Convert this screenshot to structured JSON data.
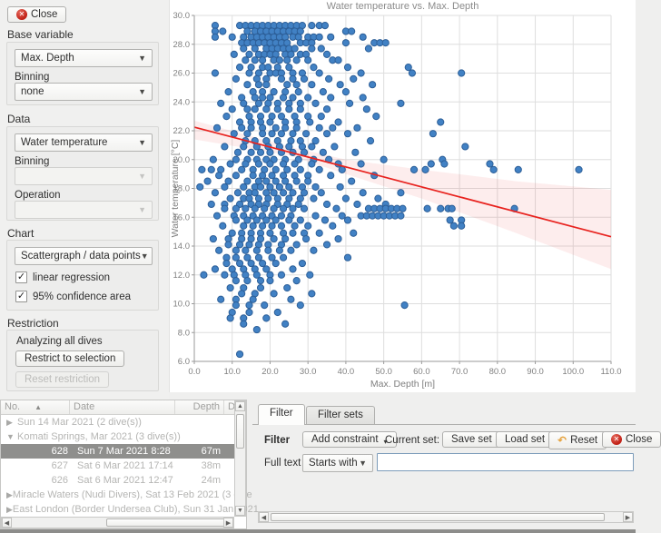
{
  "sidebar": {
    "close_label": "Close",
    "base": {
      "label": "Base variable",
      "variable": "Max. Depth",
      "binning_label": "Binning",
      "binning": "none"
    },
    "data": {
      "label": "Data",
      "variable": "Water temperature",
      "binning_label": "Binning",
      "binning": "",
      "operation_label": "Operation",
      "operation": ""
    },
    "chart": {
      "label": "Chart",
      "type": "Scattergraph / data points",
      "regression_label": "linear regression",
      "regression_checked": true,
      "confidence_label": "95% confidence area",
      "confidence_checked": true
    },
    "restriction": {
      "label": "Restriction",
      "status": "Analyzing all dives",
      "restrict_label": "Restrict to selection",
      "reset_label": "Reset restriction"
    }
  },
  "chart_data": {
    "type": "scatter",
    "title": "Water temperature vs. Max. Depth",
    "xlabel": "Max. Depth [m]",
    "ylabel": "Water temperature [°C]",
    "xlim": [
      0,
      110
    ],
    "ylim": [
      6,
      30
    ],
    "x_ticks": [
      0,
      10,
      20,
      30,
      40,
      50,
      60,
      70,
      80,
      90,
      100,
      110
    ],
    "y_ticks": [
      6,
      8,
      10,
      12,
      14,
      16,
      18,
      20,
      22,
      24,
      26,
      28,
      30
    ],
    "grid": true,
    "legend": "none",
    "point_color": "#4181c4",
    "point_edge_color": "#2d5f98",
    "regression_line": {
      "color": "#e8231f",
      "points": [
        [
          0,
          22.25
        ],
        [
          110,
          14.65
        ]
      ]
    },
    "confidence_band": {
      "color": "rgba(230,60,60,0.09)",
      "top": [
        [
          0,
          22.7
        ],
        [
          25,
          20.9
        ],
        [
          40,
          20.0
        ],
        [
          60,
          19.3
        ],
        [
          85,
          18.5
        ],
        [
          110,
          17.9
        ]
      ],
      "bottom": [
        [
          0,
          21.4
        ],
        [
          25,
          20.3
        ],
        [
          40,
          19.0
        ],
        [
          60,
          17.3
        ],
        [
          85,
          14.9
        ],
        [
          110,
          12.4
        ]
      ]
    },
    "points_by_temp": [
      {
        "t": 29.3,
        "xs": [
          5.5,
          12,
          13.5,
          15,
          16.5,
          18,
          19.5,
          21,
          22.5,
          24,
          25.5,
          27,
          28.5,
          31,
          33,
          34.5
        ]
      },
      {
        "t": 28.9,
        "xs": [
          5.5,
          7.5,
          14,
          16,
          17.5,
          19,
          20.5,
          22,
          23.5,
          25,
          26.5,
          28,
          40,
          41.5
        ]
      },
      {
        "t": 28.5,
        "xs": [
          5.5,
          10,
          13,
          15,
          16.5,
          18,
          19.5,
          21,
          22.5,
          24,
          26,
          27.5,
          30,
          31.5,
          33,
          36,
          44.5
        ]
      },
      {
        "t": 28.1,
        "xs": [
          12.5,
          14,
          15.5,
          17,
          18.5,
          20,
          21.5,
          23,
          24.5,
          28,
          29.5,
          31,
          40,
          47.5,
          49,
          50.5
        ]
      },
      {
        "t": 27.7,
        "xs": [
          13,
          16,
          19,
          20.5,
          22,
          23.5,
          25,
          26.5,
          31,
          33.5,
          46
        ]
      },
      {
        "t": 27.3,
        "xs": [
          10.5,
          14.5,
          17,
          18.5,
          20,
          21.5,
          24,
          25.5,
          28,
          29.5,
          35
        ]
      },
      {
        "t": 26.9,
        "xs": [
          13.5,
          16,
          18,
          21,
          22.5,
          24.5,
          27,
          30,
          36.5,
          38
        ]
      },
      {
        "t": 26.4,
        "xs": [
          12,
          15,
          18,
          19.5,
          22,
          25,
          31.5,
          40.5,
          56.5
        ]
      },
      {
        "t": 26.0,
        "xs": [
          5.5,
          14.5,
          17,
          20,
          21.5,
          23,
          26,
          28.5,
          33,
          44,
          57.5,
          70.5
        ]
      },
      {
        "t": 25.6,
        "xs": [
          11,
          16.5,
          19,
          23,
          26,
          29,
          35.5,
          42
        ]
      },
      {
        "t": 25.2,
        "xs": [
          14,
          17,
          19,
          24.5,
          27,
          31,
          38.5,
          47
        ]
      },
      {
        "t": 24.7,
        "xs": [
          9,
          15.5,
          18,
          21,
          24,
          27.5,
          34,
          40
        ]
      },
      {
        "t": 24.3,
        "xs": [
          12.5,
          16,
          18,
          20,
          23.5,
          26,
          30,
          36,
          44.5
        ]
      },
      {
        "t": 23.9,
        "xs": [
          7,
          13,
          17,
          19.5,
          22,
          25,
          28,
          32,
          41,
          54.5
        ]
      },
      {
        "t": 23.5,
        "xs": [
          10,
          14,
          16,
          19,
          22,
          25,
          28,
          35,
          45.5
        ]
      },
      {
        "t": 23.0,
        "xs": [
          8.5,
          14.5,
          17.5,
          20.5,
          23,
          26.5,
          30,
          33.5,
          48
        ]
      },
      {
        "t": 22.6,
        "xs": [
          12,
          15,
          17.5,
          20,
          24,
          27,
          30.5,
          38,
          65
        ]
      },
      {
        "t": 22.2,
        "xs": [
          6,
          12.5,
          15,
          18,
          21.5,
          24,
          27,
          33,
          36.5,
          43
        ]
      },
      {
        "t": 21.8,
        "xs": [
          10.5,
          14,
          18,
          20.5,
          23,
          26,
          29.5,
          35,
          40.5,
          63
        ]
      },
      {
        "t": 21.3,
        "xs": [
          13.5,
          16,
          19,
          22,
          25.5,
          28,
          32,
          46.5
        ]
      },
      {
        "t": 20.9,
        "xs": [
          8,
          13,
          16.5,
          19.5,
          22.5,
          25,
          28.5,
          31,
          37,
          71.5
        ]
      },
      {
        "t": 20.5,
        "xs": [
          11.5,
          15,
          17.5,
          20,
          23,
          26,
          29,
          34,
          42.5
        ]
      },
      {
        "t": 20.0,
        "xs": [
          5,
          11,
          14,
          16.5,
          19,
          21,
          24,
          27.5,
          31.5,
          35.5,
          50,
          65.5
        ]
      },
      {
        "t": 19.7,
        "xs": [
          9.5,
          13.5,
          17,
          20,
          23.5,
          26.5,
          31,
          38,
          44,
          62.5,
          66,
          78
        ]
      },
      {
        "t": 19.3,
        "xs": [
          2,
          4.5,
          7,
          12.5,
          15.5,
          18.5,
          21.5,
          24.5,
          28,
          33,
          39,
          58,
          61,
          79,
          85.5,
          101.5
        ]
      },
      {
        "t": 18.9,
        "xs": [
          6.5,
          11,
          15.5,
          18,
          20.5,
          23.5,
          26.5,
          30,
          36,
          47.5
        ]
      },
      {
        "t": 18.5,
        "xs": [
          3.5,
          9,
          14,
          17,
          19,
          21.5,
          24,
          27,
          30,
          41.5
        ]
      },
      {
        "t": 18.1,
        "xs": [
          1.5,
          8,
          13,
          16,
          17.5,
          20,
          22.5,
          25,
          28.5,
          32,
          38.5
        ]
      },
      {
        "t": 17.7,
        "xs": [
          5.5,
          11.5,
          14.5,
          16,
          19,
          21,
          23.5,
          26,
          29,
          33.5,
          44.5,
          54.5
        ]
      },
      {
        "t": 17.3,
        "xs": [
          9.5,
          13,
          14.5,
          17,
          19.5,
          22,
          25,
          28,
          31.5,
          40,
          48.5
        ]
      },
      {
        "t": 16.9,
        "xs": [
          4.5,
          8,
          12,
          15,
          17,
          19,
          22,
          24.5,
          27.5,
          35,
          43,
          50.5
        ]
      },
      {
        "t": 16.6,
        "xs": [
          8,
          11,
          13.5,
          16,
          18.5,
          21,
          23.5,
          26,
          29,
          37.5,
          46,
          47.5,
          49,
          50.5,
          52,
          53.5,
          55,
          61.5,
          65,
          67,
          68,
          84.5
        ]
      },
      {
        "t": 16.1,
        "xs": [
          6,
          10.5,
          13,
          15.5,
          18,
          20.5,
          23,
          25.5,
          32,
          39,
          44,
          45.5,
          47,
          48.5,
          50,
          51.5,
          53,
          54.5
        ]
      },
      {
        "t": 15.8,
        "xs": [
          11,
          14,
          16.5,
          19,
          21.5,
          25,
          28,
          34.5,
          40.5,
          67.5,
          70.5
        ]
      },
      {
        "t": 15.4,
        "xs": [
          7.5,
          13,
          15.5,
          18,
          20.5,
          23,
          26.5,
          30,
          36.5,
          68.5,
          70.5
        ]
      },
      {
        "t": 14.9,
        "xs": [
          10,
          12.5,
          15,
          17.5,
          20,
          23.5,
          26,
          29,
          33,
          42
        ]
      },
      {
        "t": 14.5,
        "xs": [
          5,
          9,
          12.5,
          15,
          17.5,
          21,
          24,
          29.5,
          38
        ]
      },
      {
        "t": 14.1,
        "xs": [
          9,
          12,
          14.5,
          17,
          19.5,
          23,
          27,
          35
        ]
      },
      {
        "t": 13.7,
        "xs": [
          6.5,
          11,
          13.5,
          16.5,
          19.5,
          22.5,
          25.5,
          31.5
        ]
      },
      {
        "t": 13.2,
        "xs": [
          8.5,
          11,
          14,
          17,
          20.5,
          23.5,
          40.5
        ]
      },
      {
        "t": 12.8,
        "xs": [
          8.5,
          12,
          15,
          18,
          21.5,
          28.5
        ]
      },
      {
        "t": 12.4,
        "xs": [
          5.5,
          10,
          13,
          16,
          19,
          26
        ]
      },
      {
        "t": 12.0,
        "xs": [
          2.5,
          8,
          10.5,
          13.5,
          16.5,
          20,
          23,
          30.5
        ]
      },
      {
        "t": 11.6,
        "xs": [
          11,
          14,
          17.5,
          20,
          27
        ]
      },
      {
        "t": 11.1,
        "xs": [
          9.5,
          13,
          17.5,
          24.5
        ]
      },
      {
        "t": 10.7,
        "xs": [
          12.5,
          16,
          21,
          31
        ]
      },
      {
        "t": 10.3,
        "xs": [
          7,
          11,
          15.5,
          25.5
        ]
      },
      {
        "t": 9.9,
        "xs": [
          11,
          14.5,
          18.5,
          28,
          55.5
        ]
      },
      {
        "t": 9.4,
        "xs": [
          10,
          14.5,
          22
        ]
      },
      {
        "t": 9.0,
        "xs": [
          9.5,
          13,
          19
        ]
      },
      {
        "t": 8.6,
        "xs": [
          13,
          24
        ]
      },
      {
        "t": 8.2,
        "xs": [
          16.5
        ]
      },
      {
        "t": 6.5,
        "xs": [
          12
        ]
      }
    ]
  },
  "dive_list": {
    "columns": [
      "No.",
      "Date",
      "Depth",
      "D"
    ],
    "rows": [
      {
        "type": "trip",
        "expanded": false,
        "label": "Sun 14 Mar 2021 (2 dive(s))",
        "selected": false
      },
      {
        "type": "trip",
        "expanded": true,
        "label": "Komati Springs, Mar 2021 (3 dive(s))",
        "selected": false
      },
      {
        "type": "dive",
        "no": "628",
        "date": "Sun 7 Mar 2021 8:28",
        "depth": "67m",
        "selected": true
      },
      {
        "type": "dive",
        "no": "627",
        "date": "Sat 6 Mar 2021 17:14",
        "depth": "38m",
        "selected": false
      },
      {
        "type": "dive",
        "no": "626",
        "date": "Sat 6 Mar 2021 12:47",
        "depth": "24m",
        "selected": false
      },
      {
        "type": "trip",
        "expanded": false,
        "label": "Miracle Waters (Nudi Divers), Sat 13 Feb 2021 (3 dive",
        "selected": false
      },
      {
        "type": "trip",
        "expanded": false,
        "label": "East London (Border Undersea Club), Sun 31 Jan 2021",
        "selected": false
      }
    ]
  },
  "filter": {
    "tabs": [
      "Filter",
      "Filter sets"
    ],
    "filter_label": "Filter",
    "add_constraint_label": "Add constraint",
    "current_set_label": "Current set:",
    "save_set_label": "Save set",
    "load_set_label": "Load set",
    "reset_label": "Reset",
    "close_label": "Close",
    "full_text_label": "Full text",
    "match_mode": "Starts with",
    "full_text_value": ""
  }
}
